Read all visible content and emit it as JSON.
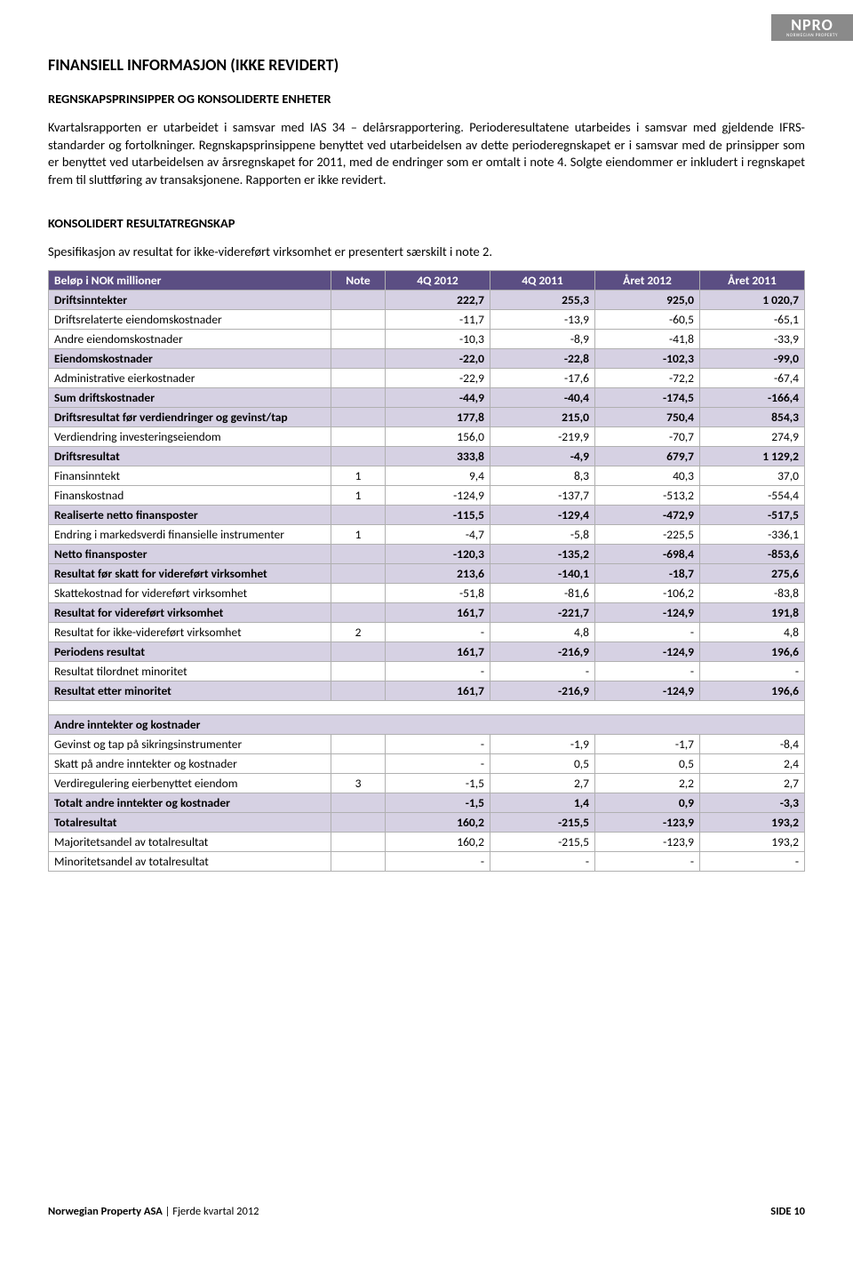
{
  "logo": {
    "main": "NPRO",
    "sub": "NORWEGIAN PROPERTY"
  },
  "title": "FINANSIELL INFORMASJON (IKKE REVIDERT)",
  "subtitle": "REGNSKAPSPRINSIPPER OG KONSOLIDERTE ENHETER",
  "para1": "Kvartalsrapporten er utarbeidet i samsvar med IAS 34 – delårsrapportering. Perioderesultatene utarbeides i samsvar med gjeldende IFRS-standarder og fortolkninger. Regnskapsprinsippene benyttet ved utarbeidelsen av dette perioderegnskapet er i samsvar med de prinsipper som er benyttet ved utarbeidelsen av årsregnskapet for 2011, med de endringer som er omtalt i note 4. Solgte eiendommer er inkludert i regnskapet frem til sluttføring av transaksjonene. Rapporten er ikke revidert.",
  "section": "KONSOLIDERT RESULTATREGNSKAP",
  "intro": "Spesifikasjon av resultat for ikke-videreført virksomhet er presentert særskilt i note 2.",
  "table": {
    "header": {
      "c0": "Beløp i NOK millioner",
      "c1": "Note",
      "c2": "4Q 2012",
      "c3": "4Q 2011",
      "c4": "Året 2012",
      "c5": "Året 2011"
    },
    "rows": [
      {
        "band": true,
        "l": "Driftsinntekter",
        "n": "",
        "v": [
          "222,7",
          "255,3",
          "925,0",
          "1 020,7"
        ]
      },
      {
        "l": "Driftsrelaterte eiendomskostnader",
        "n": "",
        "v": [
          "-11,7",
          "-13,9",
          "-60,5",
          "-65,1"
        ]
      },
      {
        "l": "Andre eiendomskostnader",
        "n": "",
        "v": [
          "-10,3",
          "-8,9",
          "-41,8",
          "-33,9"
        ]
      },
      {
        "band": true,
        "l": "Eiendomskostnader",
        "n": "",
        "v": [
          "-22,0",
          "-22,8",
          "-102,3",
          "-99,0"
        ]
      },
      {
        "l": "Administrative eierkostnader",
        "n": "",
        "v": [
          "-22,9",
          "-17,6",
          "-72,2",
          "-67,4"
        ]
      },
      {
        "band": true,
        "l": "Sum driftskostnader",
        "n": "",
        "v": [
          "-44,9",
          "-40,4",
          "-174,5",
          "-166,4"
        ]
      },
      {
        "band": true,
        "l": "Driftsresultat før verdiendringer og gevinst/tap",
        "n": "",
        "v": [
          "177,8",
          "215,0",
          "750,4",
          "854,3"
        ]
      },
      {
        "l": "Verdiendring investeringseiendom",
        "n": "",
        "v": [
          "156,0",
          "-219,9",
          "-70,7",
          "274,9"
        ]
      },
      {
        "band": true,
        "l": "Driftsresultat",
        "n": "",
        "v": [
          "333,8",
          "-4,9",
          "679,7",
          "1 129,2"
        ]
      },
      {
        "l": "Finansinntekt",
        "n": "1",
        "v": [
          "9,4",
          "8,3",
          "40,3",
          "37,0"
        ]
      },
      {
        "l": "Finanskostnad",
        "n": "1",
        "v": [
          "-124,9",
          "-137,7",
          "-513,2",
          "-554,4"
        ]
      },
      {
        "band": true,
        "l": "Realiserte netto finansposter",
        "n": "",
        "v": [
          "-115,5",
          "-129,4",
          "-472,9",
          "-517,5"
        ]
      },
      {
        "l": "Endring i markedsverdi finansielle instrumenter",
        "n": "1",
        "v": [
          "-4,7",
          "-5,8",
          "-225,5",
          "-336,1"
        ]
      },
      {
        "band": true,
        "l": "Netto finansposter",
        "n": "",
        "v": [
          "-120,3",
          "-135,2",
          "-698,4",
          "-853,6"
        ]
      },
      {
        "band": true,
        "l": "Resultat før skatt for videreført virksomhet",
        "n": "",
        "v": [
          "213,6",
          "-140,1",
          "-18,7",
          "275,6"
        ]
      },
      {
        "l": "Skattekostnad for videreført virksomhet",
        "n": "",
        "v": [
          "-51,8",
          "-81,6",
          "-106,2",
          "-83,8"
        ]
      },
      {
        "band": true,
        "l": "Resultat for videreført virksomhet",
        "n": "",
        "v": [
          "161,7",
          "-221,7",
          "-124,9",
          "191,8"
        ]
      },
      {
        "l": "Resultat for ikke-videreført virksomhet",
        "n": "2",
        "v": [
          "-",
          "4,8",
          "-",
          "4,8"
        ]
      },
      {
        "band": true,
        "l": "Periodens resultat",
        "n": "",
        "v": [
          "161,7",
          "-216,9",
          "-124,9",
          "196,6"
        ]
      },
      {
        "l": "Resultat tilordnet minoritet",
        "n": "",
        "v": [
          "-",
          "-",
          "-",
          "-"
        ]
      },
      {
        "band": true,
        "l": "Resultat etter minoritet",
        "n": "",
        "v": [
          "161,7",
          "-216,9",
          "-124,9",
          "196,6"
        ]
      }
    ],
    "section2_header": "Andre inntekter og kostnader",
    "rows2": [
      {
        "l": "Gevinst og tap på sikringsinstrumenter",
        "n": "",
        "v": [
          "-",
          "-1,9",
          "-1,7",
          "-8,4"
        ]
      },
      {
        "l": "Skatt på andre inntekter og kostnader",
        "n": "",
        "v": [
          "-",
          "0,5",
          "0,5",
          "2,4"
        ]
      },
      {
        "l": "Verdiregulering eierbenyttet eiendom",
        "n": "3",
        "v": [
          "-1,5",
          "2,7",
          "2,2",
          "2,7"
        ]
      },
      {
        "band": true,
        "l": "Totalt andre inntekter og kostnader",
        "n": "",
        "v": [
          "-1,5",
          "1,4",
          "0,9",
          "-3,3"
        ]
      },
      {
        "band": true,
        "l": "Totalresultat",
        "n": "",
        "v": [
          "160,2",
          "-215,5",
          "-123,9",
          "193,2"
        ]
      },
      {
        "l": "Majoritetsandel av totalresultat",
        "n": "",
        "v": [
          "160,2",
          "-215,5",
          "-123,9",
          "193,2"
        ]
      },
      {
        "l": "Minoritetsandel av totalresultat",
        "n": "",
        "v": [
          "-",
          "-",
          "-",
          "-"
        ]
      }
    ]
  },
  "footer": {
    "company": "Norwegian Property ASA",
    "sep": " | ",
    "period": "Fjerde kvartal 2012",
    "page": "SIDE 10"
  }
}
